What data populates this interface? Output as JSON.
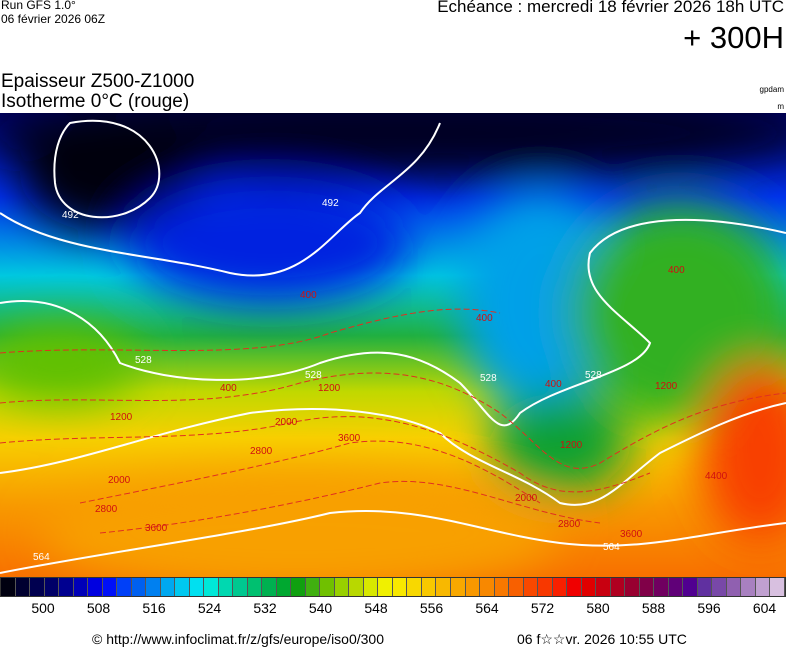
{
  "header": {
    "run": "Run GFS 1.0°",
    "run_date": "06 février 2026 06Z",
    "echeance": "Echéance : mercredi 18 février 2026 18h UTC",
    "lead": "+ 300H",
    "title1": "Epaisseur Z500-Z1000",
    "title2": "Isotherme 0°C (rouge)",
    "unit1": "gpdam",
    "unit2": "m"
  },
  "colorbar": {
    "colors": [
      "#000010",
      "#000030",
      "#000050",
      "#000068",
      "#000090",
      "#0000b8",
      "#0000e0",
      "#0010f8",
      "#0040f8",
      "#0060f0",
      "#0080f0",
      "#00a8f0",
      "#00c8f0",
      "#00e0f0",
      "#00e8d8",
      "#00d8b0",
      "#00c890",
      "#00c070",
      "#00b050",
      "#00a830",
      "#10a010",
      "#40b010",
      "#70c000",
      "#98d000",
      "#b8d800",
      "#d8e800",
      "#f0f000",
      "#f8e800",
      "#f8d800",
      "#f8c800",
      "#f8b800",
      "#f8a800",
      "#f89800",
      "#f88800",
      "#f87800",
      "#f86000",
      "#f84800",
      "#f83800",
      "#f82000",
      "#f00000",
      "#e00000",
      "#c80010",
      "#b00020",
      "#980030",
      "#800048",
      "#700060",
      "#600078",
      "#500090",
      "#6030a0",
      "#7848a8",
      "#9060b0",
      "#a880c0",
      "#c0a0d0",
      "#d8c0e0"
    ],
    "labels": [
      "500",
      "508",
      "516",
      "524",
      "532",
      "540",
      "548",
      "556",
      "564",
      "572",
      "580",
      "588",
      "596",
      "604"
    ]
  },
  "map": {
    "thickness_labels": [
      "492",
      "492",
      "528",
      "528",
      "528",
      "528",
      "564",
      "564"
    ],
    "iso0_labels": [
      "400",
      "400",
      "400",
      "400",
      "400",
      "1200",
      "1200",
      "1200",
      "1200",
      "2000",
      "2000",
      "2000",
      "2800",
      "2800",
      "2800",
      "3600",
      "3600",
      "3600",
      "4400"
    ]
  },
  "footer": {
    "url": "© http://www.infoclimat.fr/z/gfs/europe/iso0/300",
    "timestamp": "06 f☆☆vr. 2026 10:55 UTC"
  }
}
